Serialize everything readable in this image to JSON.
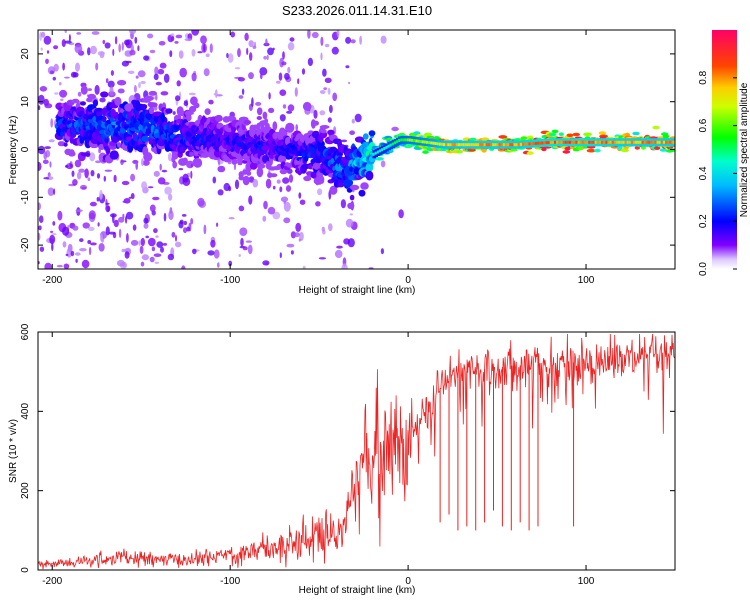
{
  "title": "S233.2026.011.14.31.E10",
  "chart_data": [
    {
      "type": "heatmap",
      "name": "spectrogram",
      "xlabel": "Height of straight line (km)",
      "ylabel": "Frequency (Hz)",
      "xlim": [
        -208,
        150
      ],
      "ylim": [
        -25,
        25
      ],
      "xticks": [
        -200,
        -100,
        0,
        100
      ],
      "xtick_labels": [
        "-200",
        "-100",
        "0",
        "100"
      ],
      "yticks": [
        -20,
        -10,
        0,
        10,
        20
      ],
      "ytick_labels": [
        "-20",
        "-10",
        "0",
        "10",
        "20"
      ],
      "colorbar": {
        "label": "Normalized spectral amplitude",
        "range": [
          0,
          1
        ],
        "ticks": [
          0.0,
          0.2,
          0.4,
          0.6,
          0.8
        ],
        "tick_labels": [
          "0.0",
          "0.2",
          "0.4",
          "0.6",
          "0.8"
        ],
        "colormap": "rainbow (violet-blue-cyan-green-yellow-orange-red-magenta)"
      },
      "ridge": {
        "description": "dominant frequency track",
        "x": [
          -190,
          -170,
          -150,
          -130,
          -110,
          -90,
          -70,
          -50,
          -40,
          -35,
          -30,
          -25,
          -20,
          -15,
          -10,
          -5,
          0,
          10,
          20,
          40,
          60,
          80,
          100,
          120,
          150
        ],
        "y": [
          5,
          5,
          4.5,
          3,
          2,
          1,
          0,
          -1,
          -3,
          -4,
          -3,
          -2,
          -1,
          0,
          1,
          2,
          2,
          1.5,
          1,
          1,
          1,
          1.5,
          1.5,
          1.5,
          1.5
        ],
        "amplitude": [
          0.25,
          0.3,
          0.3,
          0.25,
          0.2,
          0.2,
          0.2,
          0.25,
          0.3,
          0.3,
          0.35,
          0.4,
          0.45,
          0.5,
          0.55,
          0.6,
          0.65,
          0.7,
          0.8,
          0.85,
          0.85,
          0.9,
          0.9,
          0.85,
          0.85
        ]
      }
    },
    {
      "type": "line",
      "name": "snr",
      "xlabel": "Height of straight line (km)",
      "ylabel": "SNR (10 * v/v)",
      "xlim": [
        -208,
        150
      ],
      "ylim": [
        0,
        600
      ],
      "xticks": [
        -200,
        -100,
        0,
        100
      ],
      "xtick_labels": [
        "-200",
        "-100",
        "0",
        "100"
      ],
      "yticks": [
        0,
        200,
        400,
        600
      ],
      "ytick_labels": [
        "0",
        "200",
        "400",
        "600"
      ],
      "color": "#ee2222",
      "x": [
        -208,
        -200,
        -190,
        -180,
        -170,
        -160,
        -150,
        -140,
        -130,
        -120,
        -110,
        -100,
        -90,
        -80,
        -70,
        -60,
        -50,
        -40,
        -35,
        -30,
        -25,
        -20,
        -15,
        -10,
        -5,
        0,
        5,
        10,
        15,
        20,
        25,
        30,
        40,
        50,
        60,
        70,
        80,
        90,
        100,
        110,
        120,
        130,
        140,
        150
      ],
      "values": [
        15,
        15,
        18,
        22,
        28,
        30,
        28,
        26,
        25,
        27,
        32,
        40,
        45,
        55,
        65,
        75,
        85,
        100,
        130,
        200,
        260,
        300,
        310,
        320,
        330,
        340,
        360,
        400,
        440,
        470,
        490,
        500,
        505,
        510,
        515,
        518,
        520,
        522,
        525,
        528,
        530,
        532,
        535,
        535
      ],
      "dips": [
        {
          "x": 18,
          "y": 120
        },
        {
          "x": 23,
          "y": 140
        },
        {
          "x": 28,
          "y": 100
        },
        {
          "x": 33,
          "y": 110
        },
        {
          "x": 38,
          "y": 100
        },
        {
          "x": 43,
          "y": 120
        },
        {
          "x": 48,
          "y": 150
        },
        {
          "x": 53,
          "y": 110
        },
        {
          "x": 58,
          "y": 100
        },
        {
          "x": 63,
          "y": 120
        },
        {
          "x": 68,
          "y": 100
        },
        {
          "x": 73,
          "y": 110
        },
        {
          "x": 93,
          "y": 110
        }
      ]
    }
  ]
}
